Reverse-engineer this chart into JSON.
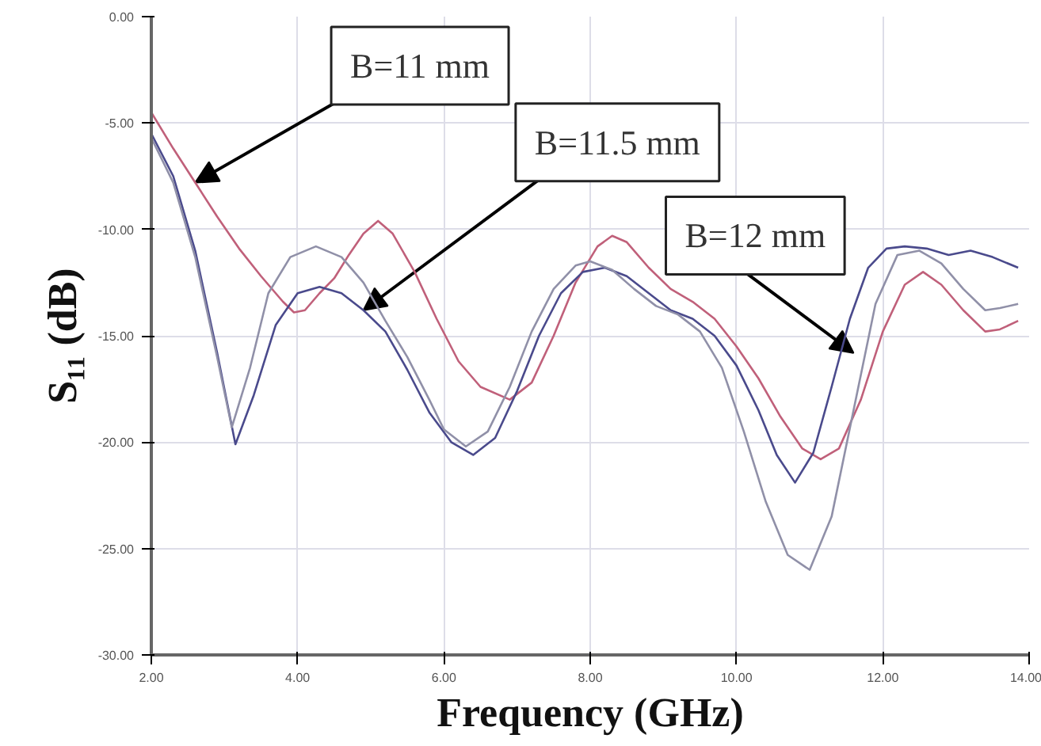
{
  "chart_data": {
    "type": "line",
    "xlabel": "Frequency (GHz)",
    "ylabel": "S₁₁ (dB)",
    "xlim": [
      2,
      14
    ],
    "ylim": [
      -30,
      0
    ],
    "xticks": [
      {
        "value": 2,
        "label": "2.00"
      },
      {
        "value": 4,
        "label": "4.00"
      },
      {
        "value": 6,
        "label": "6.00"
      },
      {
        "value": 8,
        "label": "8.00"
      },
      {
        "value": 10,
        "label": "10.00"
      },
      {
        "value": 12,
        "label": "12.00"
      },
      {
        "value": 14,
        "label": "14.00"
      }
    ],
    "yticks": [
      {
        "value": 0,
        "label": "0.00"
      },
      {
        "value": -5,
        "label": "-5.00"
      },
      {
        "value": -10,
        "label": "-10.00"
      },
      {
        "value": -15,
        "label": "-15.00"
      },
      {
        "value": -20,
        "label": "-20.00"
      },
      {
        "value": -25,
        "label": "-25.00"
      },
      {
        "value": -30,
        "label": "-30.00"
      }
    ],
    "grid": true,
    "marker": "none",
    "line_style": "solid",
    "series": [
      {
        "color": "#c0607a",
        "x": [
          2,
          2.3,
          2.6,
          2.9,
          3.2,
          3.5,
          3.8,
          3.95,
          4.1,
          4.3,
          4.5,
          4.7,
          4.9,
          5.1,
          5.3,
          5.6,
          5.9,
          6.2,
          6.5,
          6.9,
          7.2,
          7.5,
          7.8,
          8.1,
          8.3,
          8.5,
          8.8,
          9.1,
          9.4,
          9.7,
          10,
          10.3,
          10.6,
          10.9,
          11.15,
          11.4,
          11.7,
          12,
          12.3,
          12.55,
          12.8,
          13.1,
          13.4,
          13.6,
          13.85
        ],
        "values": [
          -4.5,
          -6.2,
          -7.8,
          -9.4,
          -10.9,
          -12.2,
          -13.4,
          -13.9,
          -13.8,
          -13.0,
          -12.3,
          -11.2,
          -10.2,
          -9.6,
          -10.2,
          -12.0,
          -14.2,
          -16.2,
          -17.4,
          -18.0,
          -17.2,
          -15.0,
          -12.5,
          -10.8,
          -10.3,
          -10.6,
          -11.8,
          -12.8,
          -13.4,
          -14.2,
          -15.5,
          -17.0,
          -18.8,
          -20.3,
          -20.8,
          -20.3,
          -18.0,
          -14.8,
          -12.6,
          -12.0,
          -12.6,
          -13.8,
          -14.8,
          -14.7,
          -14.3
        ]
      },
      {
        "color": "#4a4a8c",
        "x": [
          2,
          2.3,
          2.6,
          2.9,
          3.15,
          3.4,
          3.7,
          4.0,
          4.3,
          4.6,
          4.9,
          5.2,
          5.5,
          5.8,
          6.1,
          6.4,
          6.7,
          7.0,
          7.3,
          7.6,
          7.9,
          8.2,
          8.5,
          8.8,
          9.1,
          9.4,
          9.7,
          10,
          10.3,
          10.55,
          10.8,
          11.05,
          11.3,
          11.55,
          11.8,
          12.05,
          12.3,
          12.6,
          12.9,
          13.2,
          13.5,
          13.85
        ],
        "values": [
          -5.5,
          -7.5,
          -11.0,
          -15.8,
          -20.1,
          -17.8,
          -14.5,
          -13.0,
          -12.7,
          -13.0,
          -13.8,
          -14.8,
          -16.6,
          -18.6,
          -20.0,
          -20.6,
          -19.8,
          -17.6,
          -15.0,
          -13.0,
          -12.0,
          -11.8,
          -12.2,
          -13.0,
          -13.8,
          -14.2,
          -15.0,
          -16.4,
          -18.5,
          -20.6,
          -21.9,
          -20.5,
          -17.4,
          -14.2,
          -11.8,
          -10.9,
          -10.8,
          -10.9,
          -11.2,
          -11.0,
          -11.3,
          -11.8
        ]
      },
      {
        "color": "#9090a8",
        "x": [
          2,
          2.3,
          2.6,
          2.9,
          3.1,
          3.35,
          3.6,
          3.9,
          4.25,
          4.6,
          4.9,
          5.2,
          5.5,
          5.8,
          6.0,
          6.3,
          6.6,
          6.9,
          7.2,
          7.5,
          7.8,
          8.0,
          8.3,
          8.6,
          8.9,
          9.2,
          9.5,
          9.8,
          10.1,
          10.4,
          10.7,
          11.0,
          11.3,
          11.6,
          11.9,
          12.2,
          12.5,
          12.8,
          13.1,
          13.4,
          13.6,
          13.85
        ],
        "values": [
          -5.7,
          -7.8,
          -11.3,
          -16.0,
          -19.3,
          -16.5,
          -13.0,
          -11.3,
          -10.8,
          -11.3,
          -12.5,
          -14.3,
          -16.0,
          -18.0,
          -19.4,
          -20.2,
          -19.5,
          -17.4,
          -14.8,
          -12.8,
          -11.7,
          -11.5,
          -11.9,
          -12.8,
          -13.6,
          -14.0,
          -14.8,
          -16.5,
          -19.5,
          -22.8,
          -25.3,
          -26.0,
          -23.5,
          -18.5,
          -13.5,
          -11.2,
          -11.0,
          -11.6,
          -12.8,
          -13.8,
          -13.7,
          -13.5
        ]
      }
    ],
    "annotations": [
      {
        "text": "B=11 mm",
        "x": 2.6,
        "y": -7.8
      },
      {
        "text": "B=11.5 mm",
        "x": 4.9,
        "y": -13.8
      },
      "B=12 mm"
    ]
  }
}
